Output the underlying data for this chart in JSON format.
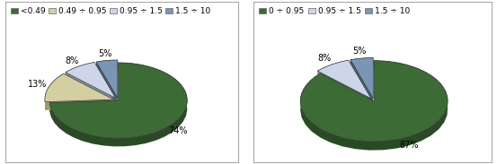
{
  "chart1": {
    "labels": [
      "<0.49",
      "0.49 ÷ 0.95",
      "0.95 ÷ 1.5",
      "1.5 ÷ 10"
    ],
    "values": [
      74,
      13,
      8,
      5
    ],
    "colors": [
      "#3d6b36",
      "#d4cfa0",
      "#ccd6e8",
      "#7a96b4"
    ],
    "colors_dark": [
      "#2a4a25",
      "#a09a70",
      "#8a96a8",
      "#4a6074"
    ],
    "explode": [
      0.0,
      0.07,
      0.07,
      0.07
    ],
    "legend_labels": [
      "<0.49",
      "0.49 ÷ 0.95",
      "0.95 ÷ 1.5",
      "1.5 ÷ 10"
    ],
    "legend_colors": [
      "#3d6b36",
      "#d4cfa0",
      "#ccd6e8",
      "#7a96b4"
    ],
    "start_angle": 90
  },
  "chart2": {
    "labels": [
      "0 ÷ 0.95",
      "0.95 ÷ 1.5",
      "1.5 ÷ 10"
    ],
    "values": [
      87,
      8,
      5
    ],
    "colors": [
      "#3d6b36",
      "#ccd6e8",
      "#7a96b4"
    ],
    "colors_dark": [
      "#2a4a25",
      "#8a96a8",
      "#4a6074"
    ],
    "explode": [
      0.0,
      0.07,
      0.07
    ],
    "legend_labels": [
      "0 ÷ 0.95",
      "0.95 ÷ 1.5",
      "1.5 ÷ 10"
    ],
    "legend_colors": [
      "#3d6b36",
      "#ccd6e8",
      "#7a96b4"
    ],
    "start_angle": 90
  },
  "background_color": "#ffffff",
  "panel_bg": "#ffffff",
  "border_color": "#aaaaaa",
  "text_color": "#000000",
  "legend_font_size": 6.5,
  "pct_font_size": 7,
  "depth": 0.12
}
